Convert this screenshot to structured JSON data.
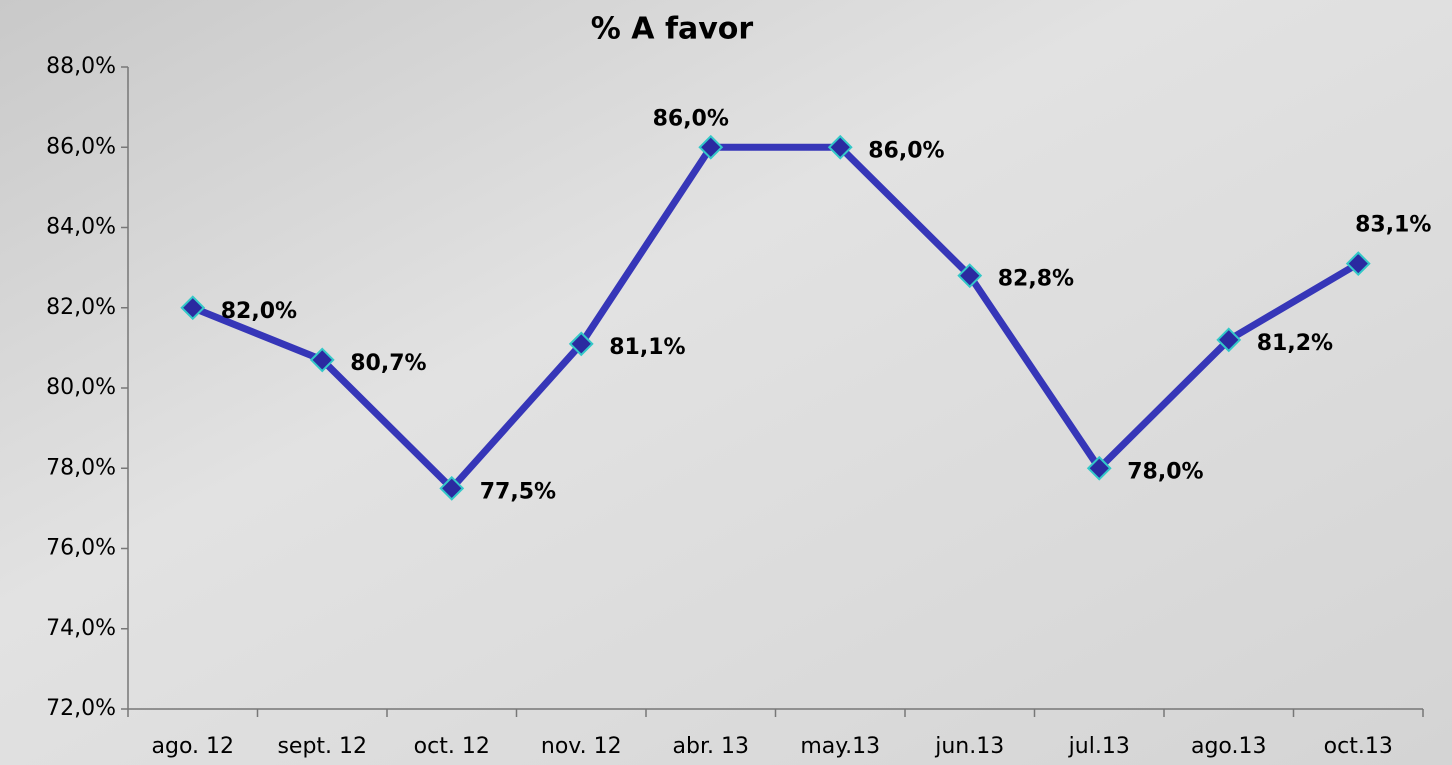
{
  "chart_data": {
    "type": "line",
    "title": "% A favor",
    "categories": [
      "ago. 12",
      "sept. 12",
      "oct. 12",
      "nov. 12",
      "abr. 13",
      "may.13",
      "jun.13",
      "jul.13",
      "ago.13",
      "oct.13"
    ],
    "series": [
      {
        "color": "#3636b8",
        "values": [
          82.0,
          80.7,
          77.5,
          81.1,
          86.0,
          86.0,
          82.8,
          78.0,
          81.2,
          83.1
        ],
        "value_labels": [
          "82,0%",
          "80,7%",
          "77,5%",
          "81,1%",
          "86,0%",
          "86,0%",
          "82,8%",
          "78,0%",
          "81,2%",
          "83,1%"
        ]
      }
    ],
    "ylim": [
      72,
      88
    ],
    "yticks": [
      {
        "value": 72,
        "label": "72,0%"
      },
      {
        "value": 74,
        "label": "74,0%"
      },
      {
        "value": 76,
        "label": "76,0%"
      },
      {
        "value": 78,
        "label": "78,0%"
      },
      {
        "value": 80,
        "label": "80,0%"
      },
      {
        "value": 82,
        "label": "82,0%"
      },
      {
        "value": 84,
        "label": "84,0%"
      },
      {
        "value": 86,
        "label": "86,0%"
      },
      {
        "value": 88,
        "label": "88,0%"
      }
    ]
  }
}
